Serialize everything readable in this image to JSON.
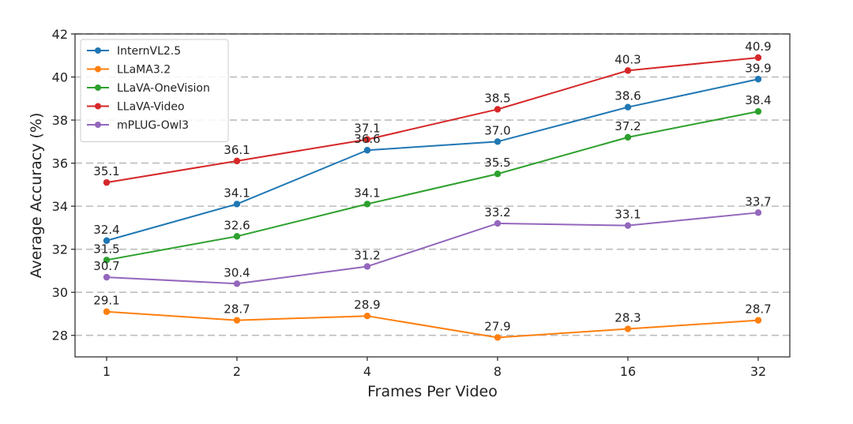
{
  "chart_data": {
    "type": "line",
    "title": "",
    "xlabel": "Frames Per Video",
    "ylabel": "Average Accuracy (%)",
    "categories": [
      "1",
      "2",
      "4",
      "8",
      "16",
      "32"
    ],
    "ylim": [
      27,
      42
    ],
    "y_ticks": [
      28,
      30,
      32,
      34,
      36,
      38,
      40,
      42
    ],
    "grid": "horizontal dashed",
    "legend_position": "top-left",
    "series": [
      {
        "name": "InternVL2.5",
        "color": "#1f77b4",
        "values": [
          32.4,
          34.1,
          36.6,
          37.0,
          38.6,
          39.9
        ],
        "labels": [
          "32.4",
          "34.1",
          "36.6",
          "37.0",
          "38.6",
          "39.9"
        ]
      },
      {
        "name": "LLaMA3.2",
        "color": "#ff7f0e",
        "values": [
          29.1,
          28.7,
          28.9,
          27.9,
          28.3,
          28.7
        ],
        "labels": [
          "29.1",
          "28.7",
          "28.9",
          "27.9",
          "28.3",
          "28.7"
        ]
      },
      {
        "name": "LLaVA-OneVision",
        "color": "#2ca02c",
        "values": [
          31.5,
          32.6,
          34.1,
          35.5,
          37.2,
          38.4
        ],
        "labels": [
          "31.5",
          "32.6",
          "34.1",
          "35.5",
          "37.2",
          "38.4"
        ]
      },
      {
        "name": "LLaVA-Video",
        "color": "#d62728",
        "values": [
          35.1,
          36.1,
          37.1,
          38.5,
          40.3,
          40.9
        ],
        "labels": [
          "35.1",
          "36.1",
          "37.1",
          "38.5",
          "40.3",
          "40.9"
        ]
      },
      {
        "name": "mPLUG-Owl3",
        "color": "#9467bd",
        "values": [
          30.7,
          30.4,
          31.2,
          33.2,
          33.1,
          33.7
        ],
        "labels": [
          "30.7",
          "30.4",
          "31.2",
          "33.2",
          "33.1",
          "33.7"
        ]
      }
    ]
  }
}
